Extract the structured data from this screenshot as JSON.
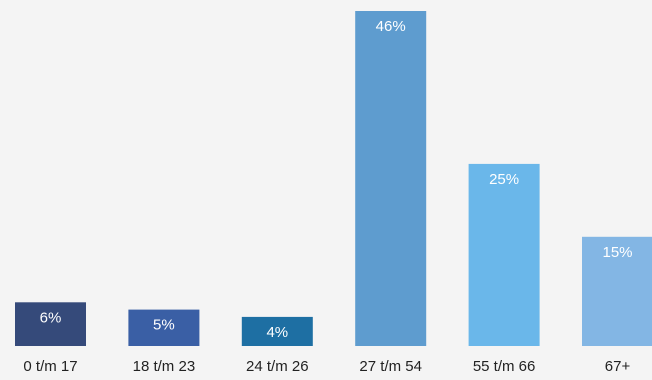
{
  "chart_data": {
    "type": "bar",
    "categories": [
      "0 t/m 17",
      "18 t/m 23",
      "24 t/m 26",
      "27 t/m 54",
      "55 t/m 66",
      "67+"
    ],
    "values": [
      6,
      5,
      4,
      46,
      25,
      15
    ],
    "value_labels": [
      "6%",
      "5%",
      "4%",
      "46%",
      "25%",
      "15%"
    ],
    "colors": [
      "#354a7a",
      "#3a5fa5",
      "#1e6fa3",
      "#5e9ccf",
      "#6ab7ea",
      "#83b6e4"
    ],
    "title": "",
    "xlabel": "",
    "ylabel": "",
    "ylim": [
      0,
      46
    ],
    "grid": false,
    "legend": "none"
  }
}
